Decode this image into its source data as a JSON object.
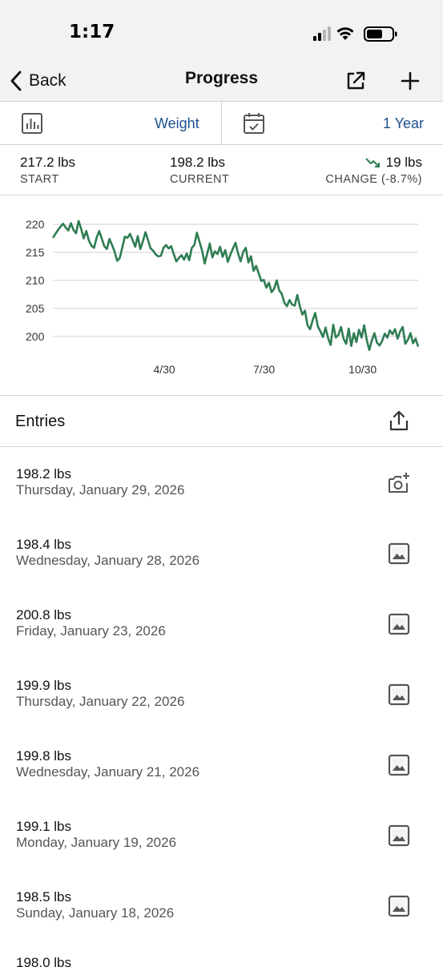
{
  "status_bar": {
    "time": "1:17"
  },
  "nav": {
    "back_label": "Back",
    "title": "Progress"
  },
  "filters": {
    "metric_label": "Weight",
    "range_label": "1 Year"
  },
  "stats": {
    "start_value": "217.2 lbs",
    "start_label": "START",
    "current_value": "198.2 lbs",
    "current_label": "CURRENT",
    "change_value": "19 lbs",
    "change_label": "CHANGE (-8.7%)"
  },
  "colors": {
    "accent_blue": "#1d4f91",
    "line_green": "#2e7d52"
  },
  "chart_data": {
    "type": "line",
    "ylim": [
      196,
      222
    ],
    "y_ticks": [
      "220",
      "215",
      "210",
      "205",
      "200"
    ],
    "x_ticks": [
      "4/30",
      "7/30",
      "10/30"
    ],
    "x_tick_positions": [
      0.305,
      0.578,
      0.848
    ],
    "series": [
      {
        "values": [
          217.6,
          218.3,
          219.0,
          219.6,
          220.1,
          219.4,
          218.9,
          220.2,
          219.0,
          218.4,
          220.6,
          219.2,
          217.5,
          218.8,
          217.1,
          216.2,
          215.8,
          217.6,
          218.8,
          217.5,
          216.1,
          215.6,
          217.4,
          216.3,
          215.1,
          213.5,
          214.0,
          215.9,
          217.8,
          217.6,
          218.3,
          217.2,
          216.0,
          217.9,
          215.6,
          217.0,
          218.6,
          217.2,
          215.7,
          215.3,
          214.6,
          214.3,
          214.4,
          215.8,
          216.3,
          215.7,
          216.1,
          214.7,
          213.4,
          214.0,
          214.5,
          213.7,
          214.8,
          213.6,
          215.8,
          216.3,
          218.5,
          216.9,
          215.3,
          213.0,
          214.8,
          216.6,
          214.1,
          215.2,
          214.7,
          216.0,
          214.2,
          215.4,
          213.3,
          214.6,
          215.7,
          216.7,
          214.8,
          213.4,
          215.1,
          215.8,
          213.2,
          214.3,
          211.7,
          212.6,
          211.3,
          209.9,
          210.1,
          208.7,
          209.6,
          207.9,
          208.5,
          210.0,
          208.2,
          207.6,
          206.0,
          205.4,
          206.5,
          205.7,
          205.5,
          207.4,
          205.4,
          203.9,
          204.6,
          202.0,
          201.3,
          202.9,
          204.2,
          201.8,
          200.9,
          199.9,
          201.6,
          199.7,
          198.5,
          202.1,
          199.8,
          200.3,
          201.7,
          199.6,
          198.7,
          201.4,
          198.3,
          200.6,
          199.0,
          201.2,
          199.8,
          202.0,
          199.4,
          197.6,
          199.3,
          200.6,
          198.9,
          198.4,
          199.2,
          200.5,
          199.8,
          201.1,
          200.4,
          201.3,
          199.6,
          200.9,
          201.7,
          198.7,
          199.4,
          200.6,
          198.8,
          199.6,
          198.2
        ]
      }
    ]
  },
  "entries": {
    "title": "Entries",
    "items": [
      {
        "weight": "198.2 lbs",
        "date": "Thursday, January 29, 2026",
        "icon": "add-photo-icon"
      },
      {
        "weight": "198.4 lbs",
        "date": "Wednesday, January 28, 2026",
        "icon": "image-icon"
      },
      {
        "weight": "200.8 lbs",
        "date": "Friday, January 23, 2026",
        "icon": "image-icon"
      },
      {
        "weight": "199.9 lbs",
        "date": "Thursday, January 22, 2026",
        "icon": "image-icon"
      },
      {
        "weight": "199.8 lbs",
        "date": "Wednesday, January 21, 2026",
        "icon": "image-icon"
      },
      {
        "weight": "199.1 lbs",
        "date": "Monday, January 19, 2026",
        "icon": "image-icon"
      },
      {
        "weight": "198.5 lbs",
        "date": "Sunday, January 18, 2026",
        "icon": "image-icon"
      }
    ],
    "partial_weight": "198.0 lbs"
  }
}
